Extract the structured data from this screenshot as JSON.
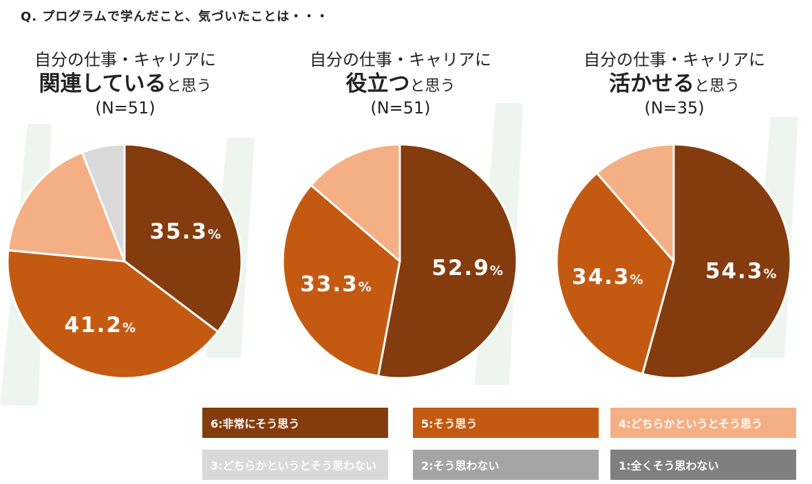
{
  "question": "Q. プログラムで学んだこと、気づいたことは・・・",
  "colors": {
    "c6": "#843b0e",
    "c5": "#c45a12",
    "c4": "#f4b084",
    "c3": "#d9d9d9",
    "c2": "#a5a5a5",
    "c1": "#7f7f7f"
  },
  "charts": [
    {
      "pre": "自分の仕事・キャリアに",
      "bold": "関連している",
      "suffix": "と思う",
      "n": "(N=51)"
    },
    {
      "pre": "自分の仕事・キャリアに",
      "bold": "役立つ",
      "suffix": "と思う",
      "n": "(N=51)"
    },
    {
      "pre": "自分の仕事・キャリアに",
      "bold": "活かせる",
      "suffix": "と思う",
      "n": "(N=35)"
    }
  ],
  "legend": [
    {
      "label": "6:非常にそう思う",
      "color_key": "c6"
    },
    {
      "label": "5:そう思う",
      "color_key": "c5"
    },
    {
      "label": "4:どちらかというとそう思う",
      "color_key": "c4"
    },
    {
      "label": "3:どちらかというとそう思わない",
      "color_key": "c3"
    },
    {
      "label": "2:そう思わない",
      "color_key": "c2"
    },
    {
      "label": "1:全くそう思わない",
      "color_key": "c1"
    }
  ],
  "chart_data": [
    {
      "type": "pie",
      "title": "自分の仕事・キャリアに関連していると思う (N=51)",
      "categories": [
        "6:非常にそう思う",
        "5:そう思う",
        "4:どちらかというとそう思う",
        "3:どちらかというとそう思わない"
      ],
      "values": [
        35.3,
        41.2,
        17.6,
        5.9
      ],
      "labels": [
        "35.3%",
        "41.2%",
        "",
        ""
      ]
    },
    {
      "type": "pie",
      "title": "自分の仕事・キャリアに役立つと思う (N=51)",
      "categories": [
        "6:非常にそう思う",
        "5:そう思う",
        "4:どちらかというとそう思う"
      ],
      "values": [
        52.9,
        33.3,
        13.7
      ],
      "labels": [
        "52.9%",
        "33.3%",
        ""
      ]
    },
    {
      "type": "pie",
      "title": "自分の仕事・キャリアに活かせると思う (N=35)",
      "categories": [
        "6:非常にそう思う",
        "5:そう思う",
        "4:どちらかというとそう思う"
      ],
      "values": [
        54.3,
        34.3,
        11.4
      ],
      "labels": [
        "54.3%",
        "34.3%",
        ""
      ]
    }
  ]
}
